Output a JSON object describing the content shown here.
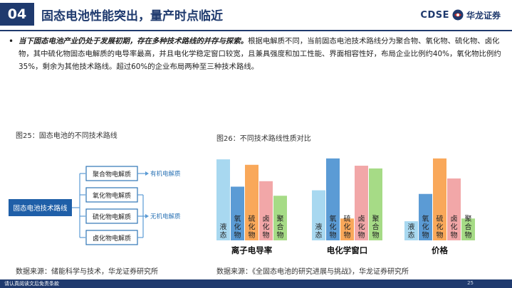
{
  "header": {
    "section_number": "04",
    "title": "固态电池性能突出，量产时点临近",
    "logo_left": "CDSE",
    "logo_right": "华龙证券"
  },
  "bullet": {
    "bold_text": "当下固态电池产业仍处于发展初期，存在多种技术路线的并存与探索。",
    "normal_text": "根据电解质不同，当前固态电池技术路线分为聚合物、氧化物、硫化物、卤化物，其中硫化物固态电解质的电导率最高，并且电化学稳定窗口较宽，且兼具强度和加工性能、界面相容性好，布局企业比例约40%，氧化物比例约35%，剩余为其他技术路线。超过60%的企业布局两种至三种技术路线。"
  },
  "figure25": {
    "caption": "图25：固态电池的不同技术路线",
    "root": "固态电池技术路线",
    "nodes": [
      "聚合物电解质",
      "氧化物电解质",
      "硫化物电解质",
      "卤化物电解质"
    ],
    "group_labels": {
      "organic": "有机电解质",
      "inorganic": "无机电解质"
    },
    "source": "数据来源：储能科学与技术，华龙证券研究所"
  },
  "figure26": {
    "caption": "图26：不同技术路线性质对比",
    "source": "数据来源：《全固态电池的研究进展与挑战》，华龙证券研究所"
  },
  "chart_data": {
    "type": "bar",
    "categories": [
      "离子电导率",
      "电化学窗口",
      "价格"
    ],
    "series": [
      {
        "name": "液态",
        "color": "#a8d8f0",
        "values": [
          89,
          55,
          21
        ]
      },
      {
        "name": "氧化物",
        "color": "#5b9bd5",
        "values": [
          59,
          90,
          51
        ]
      },
      {
        "name": "硫化物",
        "color": "#f9a85a",
        "values": [
          83,
          24,
          90
        ]
      },
      {
        "name": "卤化物",
        "color": "#f2a7a8",
        "values": [
          65,
          82,
          68
        ]
      },
      {
        "name": "聚合物",
        "color": "#a6db86",
        "values": [
          49,
          79,
          24
        ]
      }
    ],
    "title": "",
    "xlabel": "",
    "ylabel": "",
    "ylim": [
      0,
      100
    ],
    "axes_visible": false
  },
  "footer": {
    "disclaimer": "请认真阅读文后免责条款",
    "page": "25"
  },
  "colors": {
    "brand": "#1f3a6e",
    "node_border": "#2e75b6",
    "root_fill": "#1f5fa8"
  }
}
